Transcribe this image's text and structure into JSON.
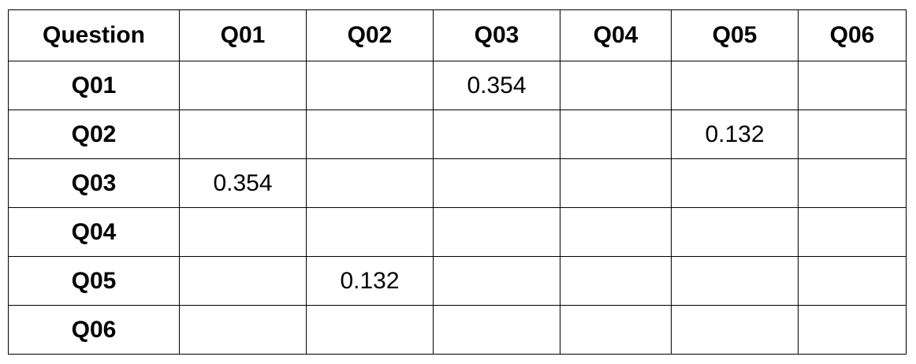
{
  "table": {
    "corner_label": "Question",
    "columns": [
      "Q01",
      "Q02",
      "Q03",
      "Q04",
      "Q05",
      "Q06"
    ],
    "rows": [
      {
        "label": "Q01",
        "cells": [
          "",
          "",
          "0.354",
          "",
          "",
          ""
        ]
      },
      {
        "label": "Q02",
        "cells": [
          "",
          "",
          "",
          "",
          "0.132",
          ""
        ]
      },
      {
        "label": "Q03",
        "cells": [
          "0.354",
          "",
          "",
          "",
          "",
          ""
        ]
      },
      {
        "label": "Q04",
        "cells": [
          "",
          "",
          "",
          "",
          "",
          ""
        ]
      },
      {
        "label": "Q05",
        "cells": [
          "",
          "0.132",
          "",
          "",
          "",
          ""
        ]
      },
      {
        "label": "Q06",
        "cells": [
          "",
          "",
          "",
          "",
          "",
          ""
        ]
      }
    ]
  }
}
